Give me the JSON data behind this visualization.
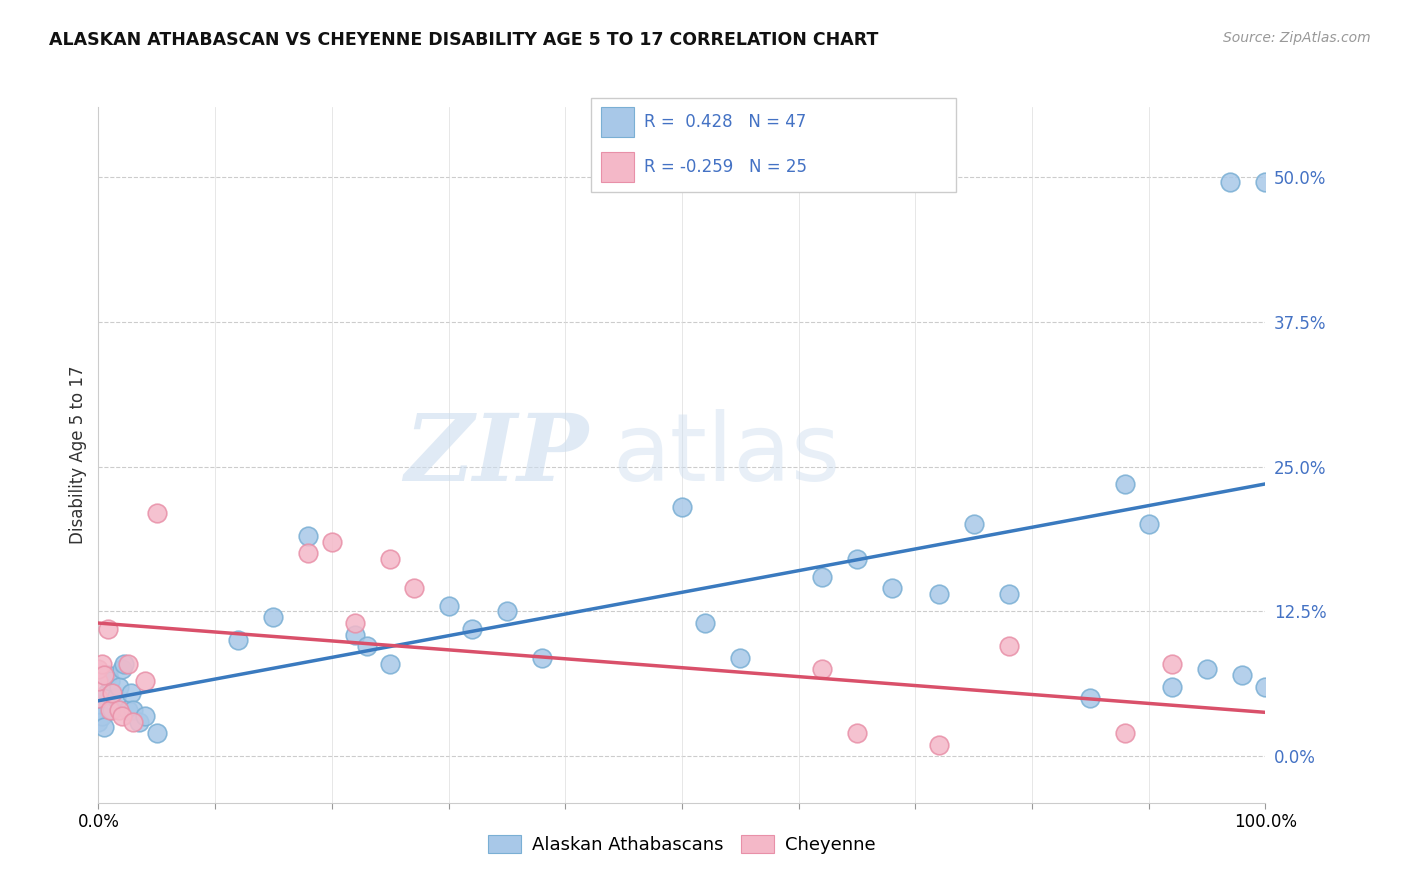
{
  "title": "ALASKAN ATHABASCAN VS CHEYENNE DISABILITY AGE 5 TO 17 CORRELATION CHART",
  "source": "Source: ZipAtlas.com",
  "ylabel": "Disability Age 5 to 17",
  "legend_labels": [
    "Alaskan Athabascans",
    "Cheyenne"
  ],
  "blue_color": "#a8c8e8",
  "pink_color": "#f4b8c8",
  "blue_edge_color": "#7aafd4",
  "pink_edge_color": "#e890a8",
  "blue_line_color": "#3a7abf",
  "pink_line_color": "#d9506a",
  "tick_color": "#4472c4",
  "xmin": 0.0,
  "xmax": 1.0,
  "ymin": -0.04,
  "ymax": 0.56,
  "yticks": [
    0.0,
    0.125,
    0.25,
    0.375,
    0.5
  ],
  "ytick_labels": [
    "0.0%",
    "12.5%",
    "25.0%",
    "37.5%",
    "50.0%"
  ],
  "xticks": [
    0.0,
    0.1,
    0.2,
    0.3,
    0.4,
    0.5,
    0.6,
    0.7,
    0.8,
    0.9,
    1.0
  ],
  "xtick_labels": [
    "0.0%",
    "",
    "",
    "",
    "",
    "",
    "",
    "",
    "",
    "",
    "100.0%"
  ],
  "watermark_zip": "ZIP",
  "watermark_atlas": "atlas",
  "blue_x": [
    0.0,
    0.0,
    0.0,
    0.003,
    0.005,
    0.007,
    0.008,
    0.01,
    0.012,
    0.015,
    0.018,
    0.02,
    0.022,
    0.025,
    0.028,
    0.03,
    0.035,
    0.04,
    0.05,
    0.12,
    0.15,
    0.18,
    0.22,
    0.23,
    0.25,
    0.3,
    0.32,
    0.35,
    0.38,
    0.5,
    0.52,
    0.55,
    0.62,
    0.65,
    0.68,
    0.72,
    0.78,
    0.85,
    0.88,
    0.9,
    0.92,
    0.95,
    0.97,
    0.98,
    1.0,
    1.0,
    0.75
  ],
  "blue_y": [
    0.03,
    0.04,
    0.045,
    0.035,
    0.025,
    0.055,
    0.07,
    0.065,
    0.04,
    0.05,
    0.06,
    0.075,
    0.08,
    0.04,
    0.055,
    0.04,
    0.03,
    0.035,
    0.02,
    0.1,
    0.12,
    0.19,
    0.105,
    0.095,
    0.08,
    0.13,
    0.11,
    0.125,
    0.085,
    0.215,
    0.115,
    0.085,
    0.155,
    0.17,
    0.145,
    0.14,
    0.14,
    0.05,
    0.235,
    0.2,
    0.06,
    0.075,
    0.495,
    0.07,
    0.495,
    0.06,
    0.2
  ],
  "pink_x": [
    0.0,
    0.0,
    0.0,
    0.003,
    0.005,
    0.008,
    0.01,
    0.012,
    0.018,
    0.02,
    0.025,
    0.03,
    0.04,
    0.05,
    0.18,
    0.2,
    0.22,
    0.25,
    0.27,
    0.62,
    0.65,
    0.72,
    0.78,
    0.88,
    0.92
  ],
  "pink_y": [
    0.05,
    0.065,
    0.075,
    0.08,
    0.07,
    0.11,
    0.04,
    0.055,
    0.04,
    0.035,
    0.08,
    0.03,
    0.065,
    0.21,
    0.175,
    0.185,
    0.115,
    0.17,
    0.145,
    0.075,
    0.02,
    0.01,
    0.095,
    0.02,
    0.08
  ],
  "blue_trend_x": [
    0.0,
    1.0
  ],
  "blue_trend_y": [
    0.048,
    0.235
  ],
  "pink_trend_x": [
    0.0,
    1.0
  ],
  "pink_trend_y": [
    0.115,
    0.038
  ]
}
